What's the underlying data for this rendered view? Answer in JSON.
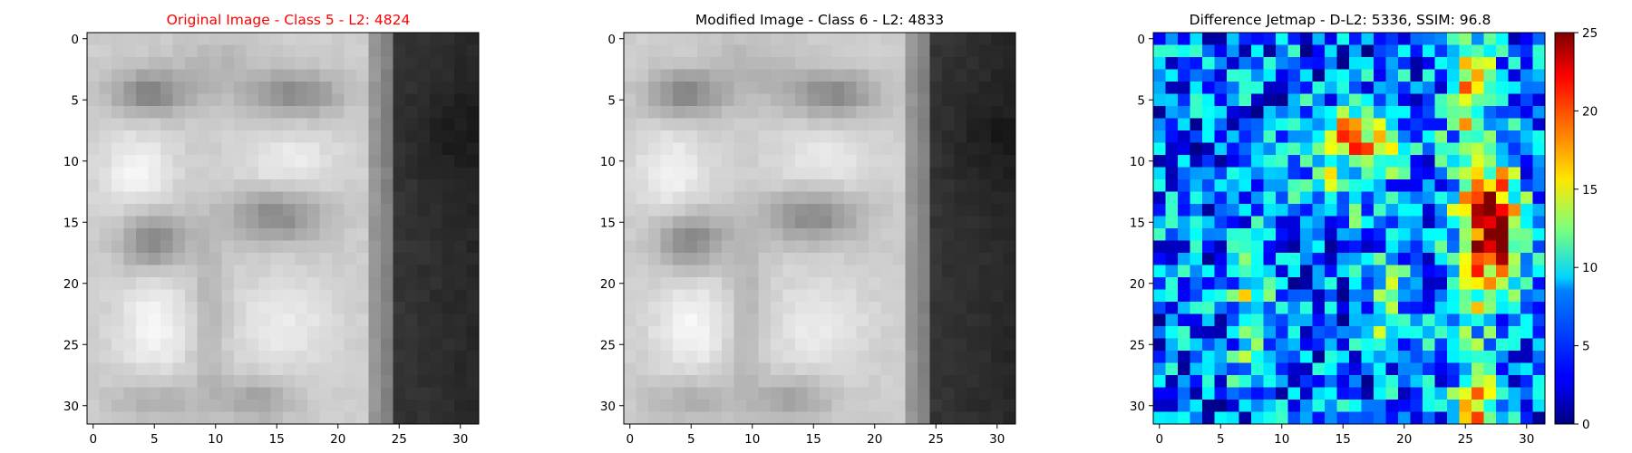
{
  "chart_data": [
    {
      "type": "heatmap",
      "title": "Original Image - Class 5 - L2: 4824",
      "title_color": "#ff0000",
      "colormap": "gray",
      "rows": 32,
      "cols": 32,
      "xlim": [
        0,
        31
      ],
      "ylim": [
        31,
        0
      ],
      "xticks": [
        0,
        5,
        10,
        15,
        20,
        25,
        30
      ],
      "yticks": [
        0,
        5,
        10,
        15,
        20,
        25,
        30
      ]
    },
    {
      "type": "heatmap",
      "title": "Modified Image - Class 6 - L2: 4833",
      "title_color": "#000000",
      "colormap": "gray",
      "rows": 32,
      "cols": 32,
      "xlim": [
        0,
        31
      ],
      "ylim": [
        31,
        0
      ],
      "xticks": [
        0,
        5,
        10,
        15,
        20,
        25,
        30
      ],
      "yticks": [
        0,
        5,
        10,
        15,
        20,
        25,
        30
      ]
    },
    {
      "type": "heatmap",
      "title": "Difference Jetmap - D-L2: 5336, SSIM: 96.8",
      "title_color": "#000000",
      "colormap": "jet",
      "rows": 32,
      "cols": 32,
      "xlim": [
        0,
        31
      ],
      "ylim": [
        31,
        0
      ],
      "xticks": [
        0,
        5,
        10,
        15,
        20,
        25,
        30
      ],
      "yticks": [
        0,
        5,
        10,
        15,
        20,
        25,
        30
      ],
      "colorbar": {
        "min": 0,
        "max": 25,
        "ticks": [
          0,
          5,
          10,
          15,
          20,
          25
        ]
      }
    }
  ]
}
